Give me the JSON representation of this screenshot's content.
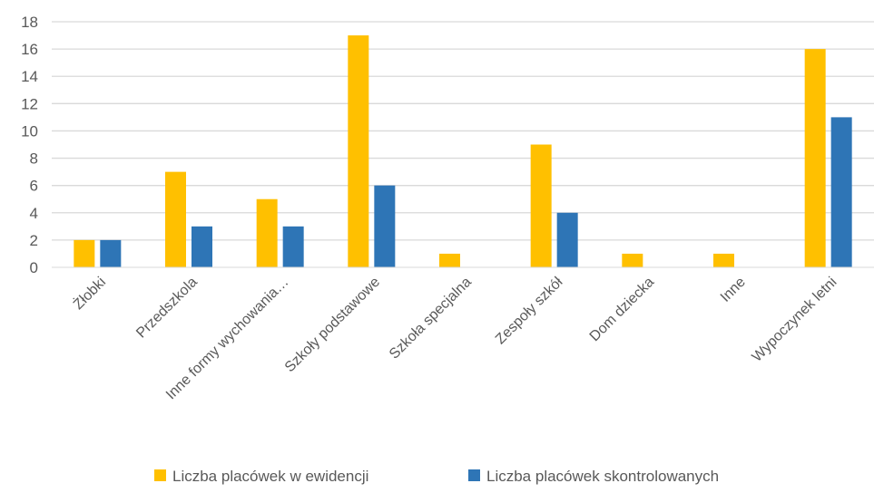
{
  "chart_data": {
    "type": "bar",
    "categories": [
      "Żłobki",
      "Przedszkola",
      "Inne formy wychowania…",
      "Szkoły podstawowe",
      "Szkoła specjalna",
      "Zespoły szkół",
      "Dom dziecka",
      "Inne",
      "Wypoczynek letni"
    ],
    "series": [
      {
        "name": "Liczba placówek w ewidencji",
        "values": [
          2,
          7,
          5,
          17,
          1,
          9,
          1,
          1,
          16
        ],
        "color": "#FFC000"
      },
      {
        "name": "Liczba placówek skontrolowanych",
        "values": [
          2,
          3,
          3,
          6,
          0,
          4,
          0,
          0,
          11
        ],
        "color": "#2E75B6"
      }
    ],
    "ylim": [
      0,
      18
    ],
    "yticks": [
      0,
      2,
      4,
      6,
      8,
      10,
      12,
      14,
      16,
      18
    ],
    "grid": true,
    "legend": "bottom",
    "gridColor": "#D9D9D9"
  }
}
